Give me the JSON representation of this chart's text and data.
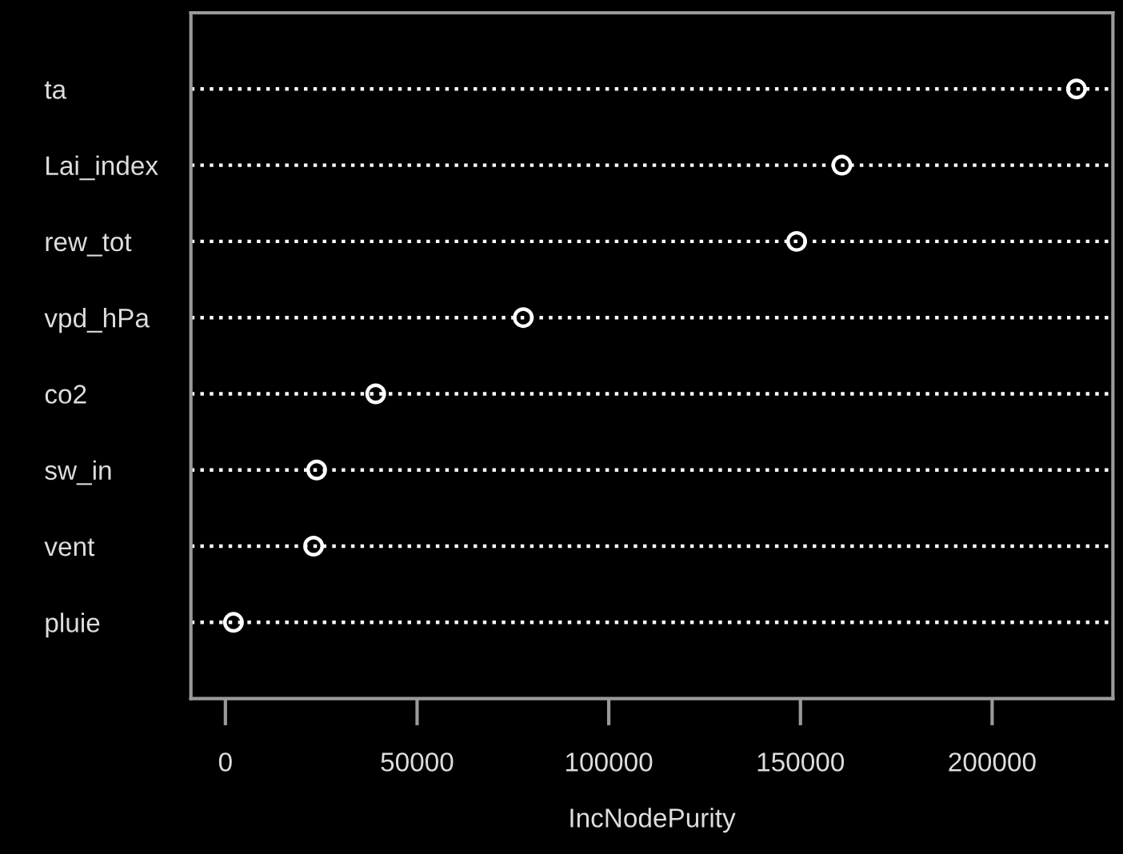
{
  "chart_data": {
    "type": "scatter",
    "orientation": "horizontal",
    "xlabel": "IncNodePurity",
    "categories": [
      "ta",
      "Lai_index",
      "rew_tot",
      "vpd_hPa",
      "co2",
      "sw_in",
      "vent",
      "pluie"
    ],
    "values": [
      222000,
      160800,
      149000,
      77700,
      39200,
      23800,
      23000,
      2100
    ],
    "color": "#ffffff",
    "marker": "circle",
    "grid": "y",
    "line_style": "dotted",
    "xlim": [
      -9000,
      231500
    ],
    "xticks": [
      0,
      50000,
      100000,
      150000,
      200000
    ]
  }
}
